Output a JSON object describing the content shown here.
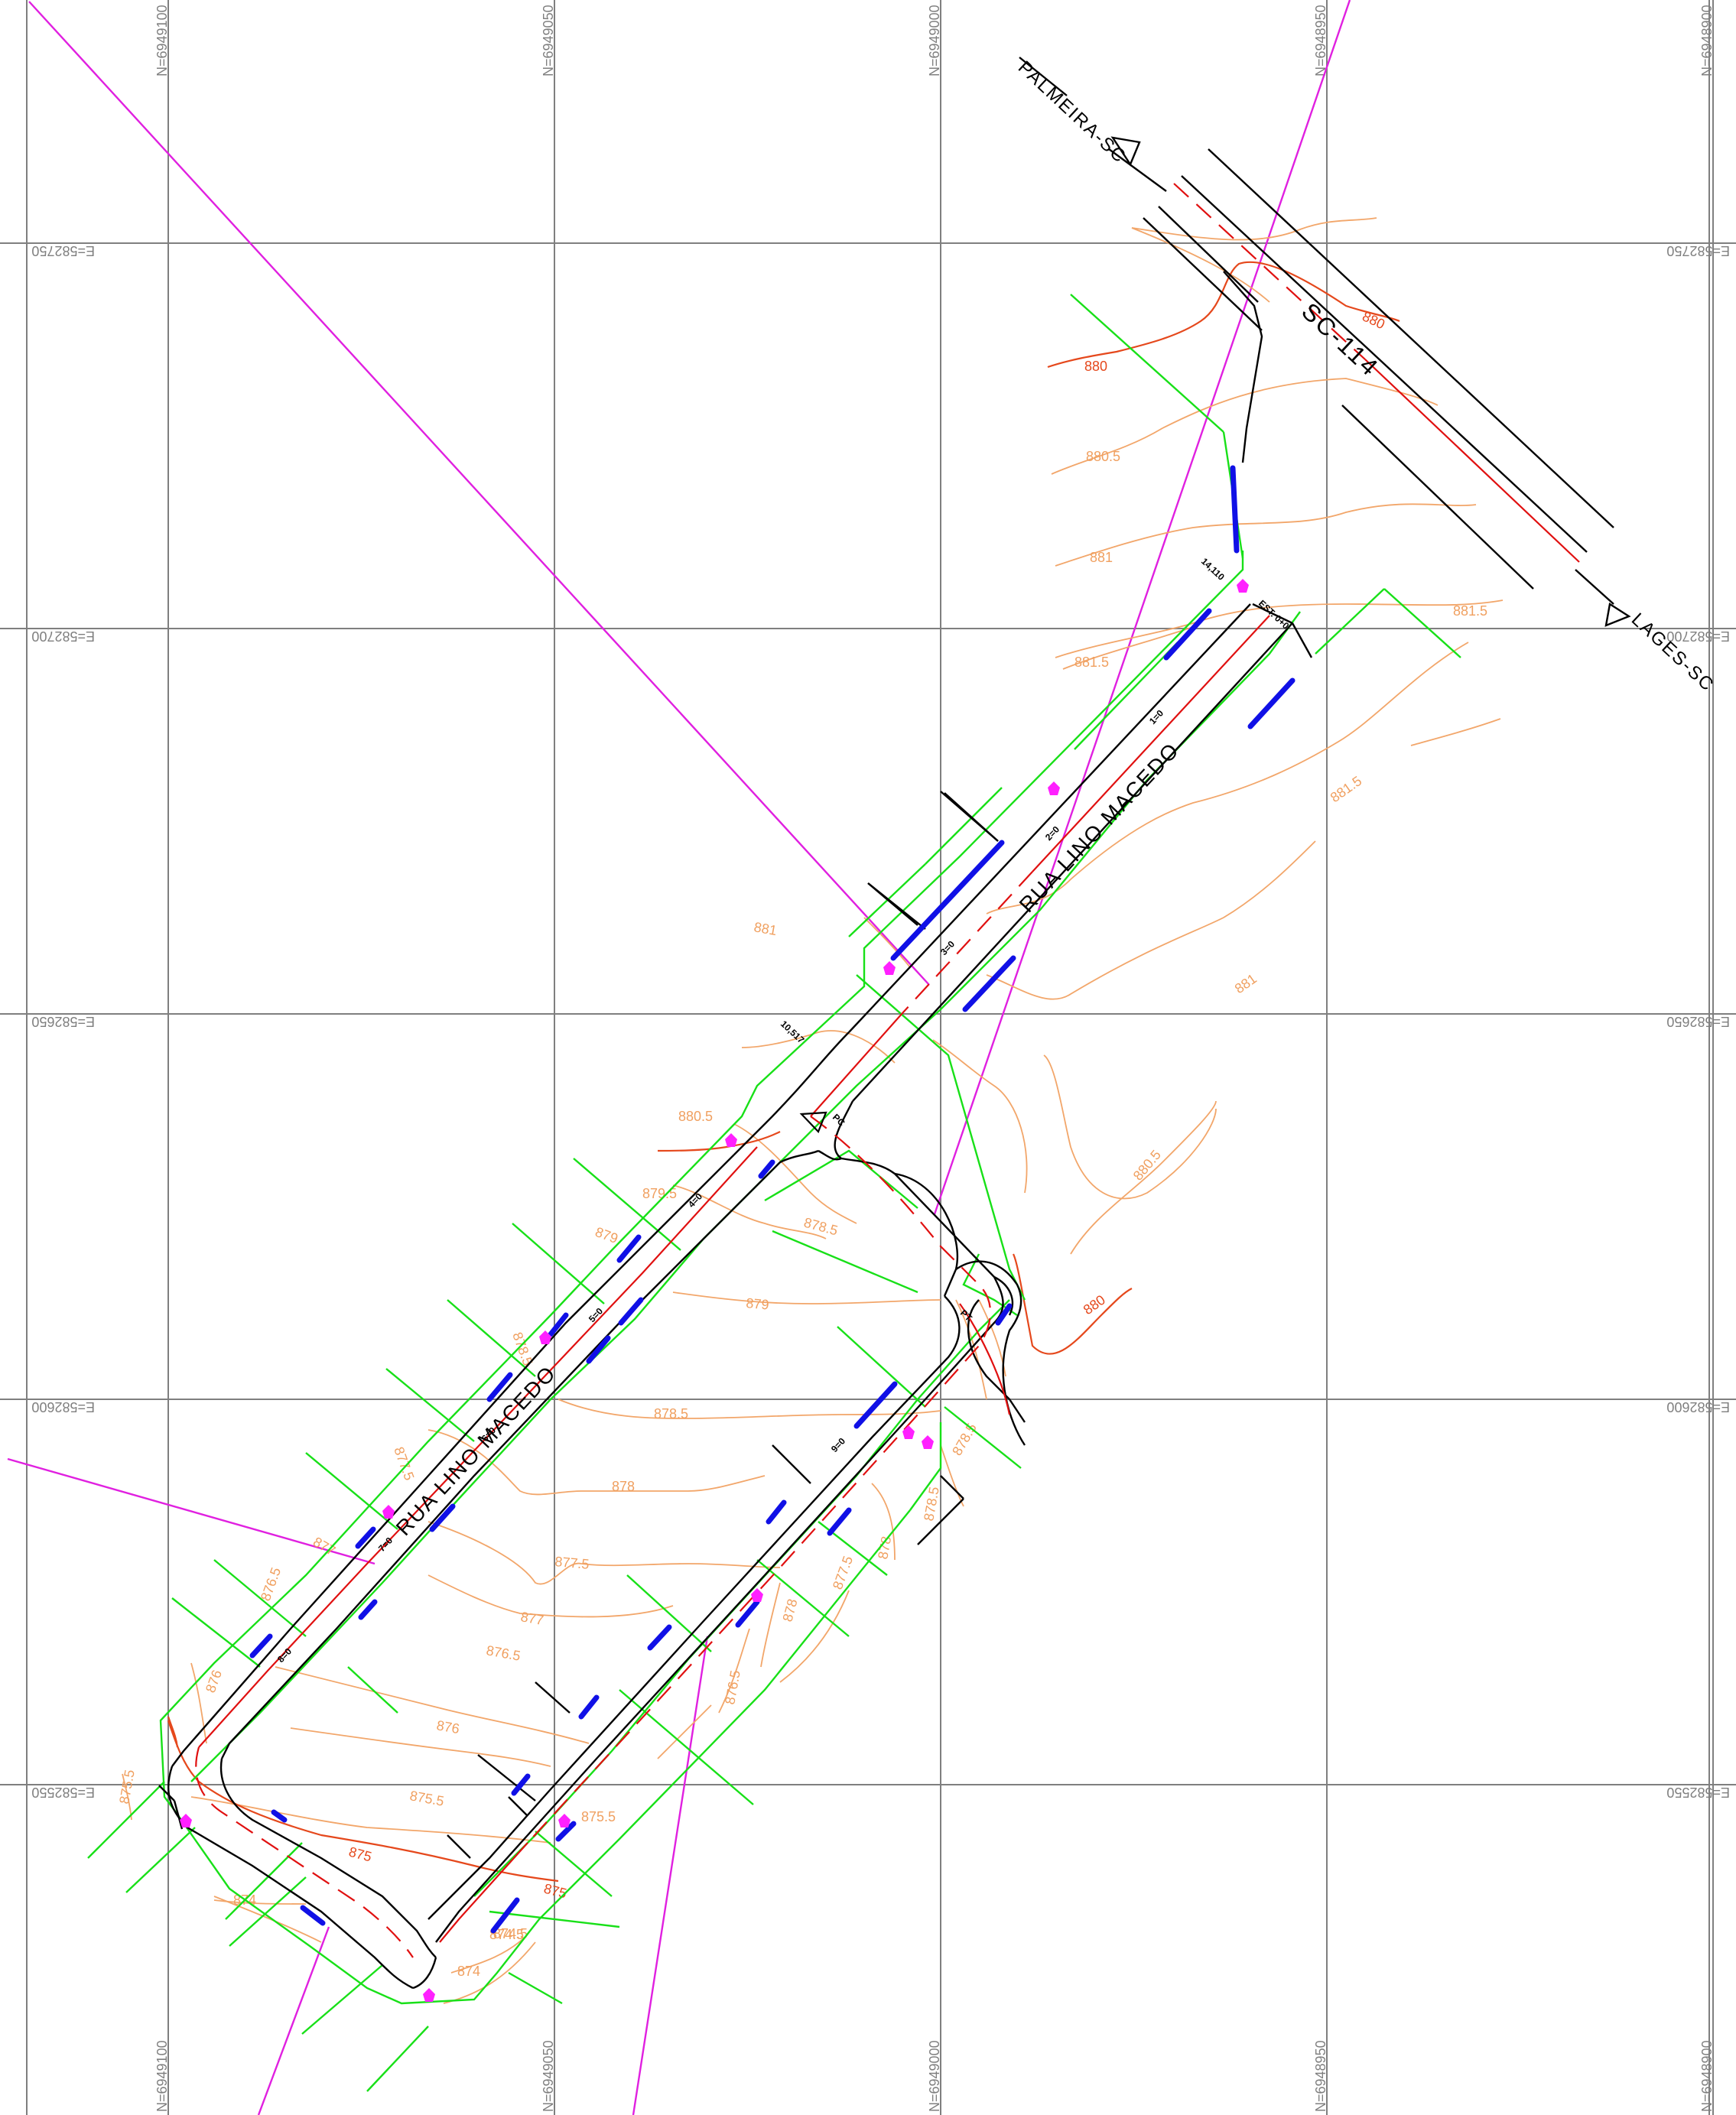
{
  "grid": {
    "north_labels": [
      "N=6949100",
      "N=6949050",
      "N=6949000",
      "N=6948950",
      "N=6948900"
    ],
    "east_labels": [
      "E=582750",
      "E=582700",
      "E=582650",
      "E=582600",
      "E=582550"
    ]
  },
  "roads": {
    "street_name": "RUA LINO MACEDO",
    "highway_name": "SC-114",
    "direction_to_palmeira": "PALMEIRA-SC",
    "direction_to_lages": "LAGES-SC"
  },
  "contour_labels": [
    "880",
    "880",
    "880.5",
    "881",
    "881.5",
    "881.5",
    "881.5",
    "881",
    "880.5",
    "880",
    "880.5",
    "879.5",
    "879",
    "878.5",
    "879",
    "878.5",
    "878",
    "877.5",
    "877",
    "876.5",
    "876",
    "875.5",
    "875",
    "875",
    "874.5",
    "874",
    "874",
    "878.5",
    "877.5",
    "877",
    "876.5",
    "876",
    "875.5",
    "878.5",
    "878",
    "877.5",
    "876.5",
    "875.5",
    "874.5",
    "881",
    "878",
    "878.5"
  ],
  "stations": [
    "14,110",
    "10,517",
    "EST. 0+0",
    "PC",
    "PT",
    "1=0",
    "2=0",
    "3=0",
    "4=0",
    "5=0",
    "6=0",
    "7=0",
    "8=0",
    "9=0"
  ],
  "colors": {
    "grid": "#7f7f7f",
    "road_edge": "#000000",
    "axis": "#e01010",
    "section": "#18e018",
    "contour_minor": "#f2a66a",
    "contour_major": "#e5481c",
    "boundary": "#e020e0",
    "drain": "#1010e6",
    "marker": "#ff20ff"
  }
}
